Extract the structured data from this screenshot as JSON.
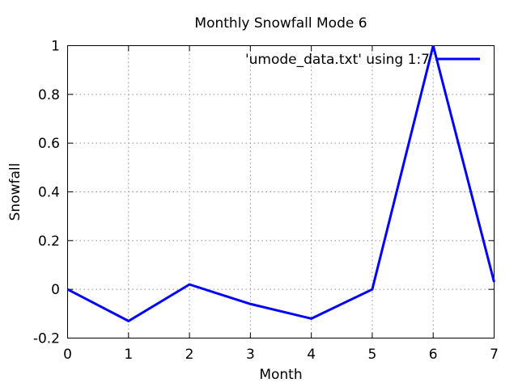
{
  "colors": {
    "background": "#ffffff",
    "line": "#0000ff",
    "grid": "#909090",
    "axis": "#000000",
    "text": "#000000"
  },
  "legend": {
    "label": "'umode_data.txt' using 1:7",
    "position": "top-right-inside"
  },
  "chart_data": {
    "type": "line",
    "title": "Monthly Snowfall Mode 6",
    "xlabel": "Month",
    "ylabel": "Snowfall",
    "series": [
      {
        "name": "'umode_data.txt' using 1:7",
        "x": [
          0,
          1,
          2,
          3,
          4,
          5,
          6,
          7
        ],
        "y": [
          0,
          -0.13,
          0.02,
          -0.06,
          -0.12,
          0,
          1.0,
          0.03
        ]
      }
    ],
    "xlim": [
      0,
      7
    ],
    "ylim": [
      -0.2,
      1
    ],
    "x_ticks": [
      0,
      1,
      2,
      3,
      4,
      5,
      6,
      7
    ],
    "x_tick_labels": [
      "0",
      "1",
      "2",
      "3",
      "4",
      "5",
      "6",
      "7"
    ],
    "y_ticks": [
      -0.2,
      0,
      0.2,
      0.4,
      0.6,
      0.8,
      1
    ],
    "y_tick_labels": [
      "-0.2",
      "0",
      "0.2",
      "0.4",
      "0.6",
      "0.8",
      "1"
    ],
    "grid": true,
    "grid_style": "dotted",
    "legend_position": "top-right-inside"
  }
}
